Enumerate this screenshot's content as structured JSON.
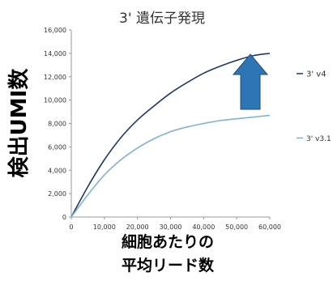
{
  "chart_data": {
    "type": "line",
    "title": "3' 遺伝子発現",
    "ylabel": "検出UMI数",
    "xlabel_lines": [
      "細胞あたりの",
      "平均リード数"
    ],
    "xlim": [
      0,
      60000
    ],
    "ylim": [
      0,
      16000
    ],
    "x_ticks": [
      0,
      10000,
      20000,
      30000,
      40000,
      50000,
      60000
    ],
    "x_tick_labels": [
      "0",
      "10,000",
      "20,000",
      "30,000",
      "40,000",
      "50,000",
      "60,000"
    ],
    "y_ticks": [
      0,
      2000,
      4000,
      6000,
      8000,
      10000,
      12000,
      14000,
      16000
    ],
    "y_tick_labels": [
      "0",
      "2,000",
      "4,000",
      "6,000",
      "8,000",
      "10,000",
      "12,000",
      "14,000",
      "16,000"
    ],
    "series": [
      {
        "name": "3' v4",
        "color": "#1f3864",
        "x": [
          0,
          5000,
          10000,
          15000,
          20000,
          25000,
          30000,
          35000,
          40000,
          45000,
          50000,
          55000,
          60000
        ],
        "y": [
          0,
          2600,
          4900,
          6800,
          8300,
          9500,
          10600,
          11500,
          12300,
          12900,
          13400,
          13800,
          14000
        ]
      },
      {
        "name": "3' v3.1",
        "color": "#7fb3d5",
        "x": [
          0,
          5000,
          10000,
          15000,
          20000,
          25000,
          30000,
          35000,
          40000,
          45000,
          50000,
          55000,
          60000
        ],
        "y": [
          0,
          1900,
          3600,
          4900,
          5900,
          6700,
          7300,
          7700,
          8000,
          8250,
          8400,
          8550,
          8700
        ]
      }
    ],
    "annotation": {
      "type": "up-arrow",
      "color": "#2e75b6",
      "meaning": "increase from 3' v3.1 to 3' v4"
    }
  }
}
